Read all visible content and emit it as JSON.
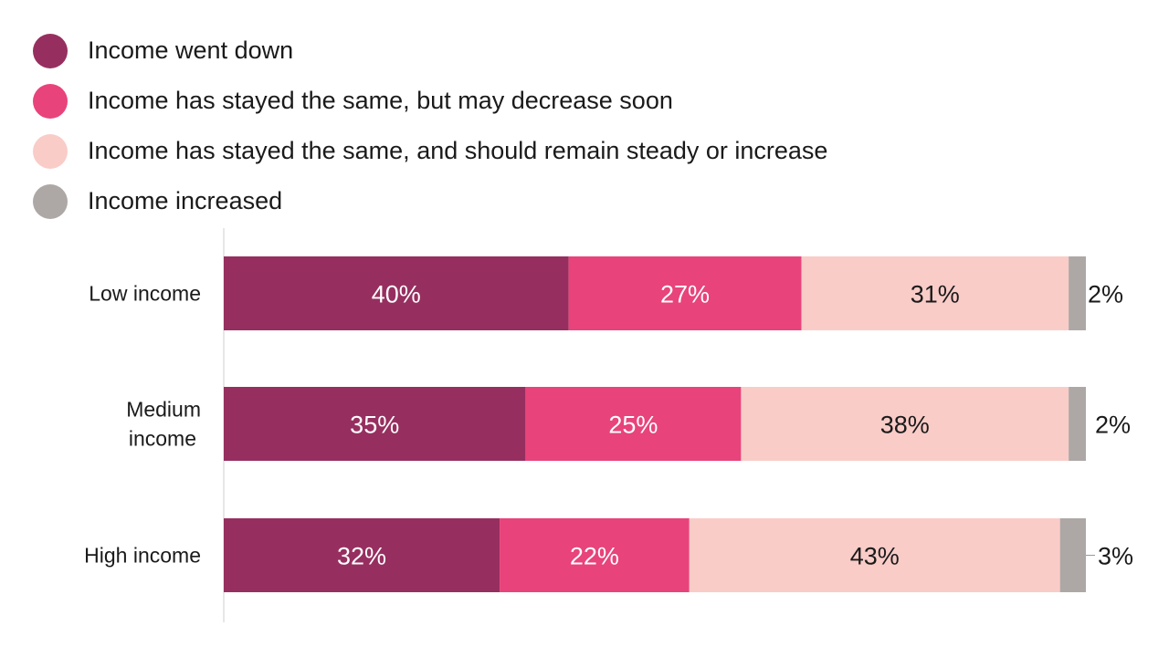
{
  "chart_data": {
    "type": "bar",
    "orientation": "horizontal",
    "stacked": true,
    "categories": [
      "Low income",
      "Medium income",
      "High income"
    ],
    "series": [
      {
        "name": "Income went down",
        "values": [
          40,
          35,
          32
        ],
        "color": "#962f5f"
      },
      {
        "name": "Income has stayed the same, but may decrease soon",
        "values": [
          27,
          25,
          22
        ],
        "color": "#e8437a"
      },
      {
        "name": "Income has stayed the same, and should remain steady or increase",
        "values": [
          31,
          38,
          43
        ],
        "color": "#f9ccc8"
      },
      {
        "name": "Income increased",
        "values": [
          2,
          2,
          3
        ],
        "color": "#ada8a6"
      }
    ],
    "value_labels": [
      [
        "40%",
        "27%",
        "31%",
        "2%"
      ],
      [
        "35%",
        "25%",
        "38%",
        "2%"
      ],
      [
        "32%",
        "22%",
        "43%",
        "3%"
      ]
    ],
    "label_colors": [
      "#ffffff",
      "#ffffff",
      "#1a1a1a",
      "#1a1a1a"
    ],
    "xlim": [
      0,
      100
    ],
    "legend_position": "top-left",
    "grid": false
  }
}
